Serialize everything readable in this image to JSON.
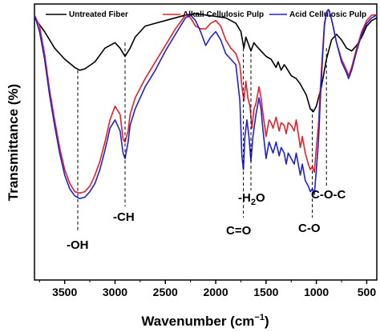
{
  "chart_data": {
    "type": "line",
    "xlabel": "Wavenumber (cm",
    "xlabel_sup": "−1",
    "xlabel_end": ")",
    "ylabel": "Transmittance (%)",
    "xlim": [
      3800,
      400
    ],
    "xticks": [
      3500,
      3000,
      2500,
      2000,
      1500,
      1000,
      500
    ],
    "ylim": [
      0,
      100
    ],
    "legend_position": "top",
    "series": [
      {
        "name": "Untreated Fiber",
        "color": "#000000",
        "points": [
          [
            3800,
            95
          ],
          [
            3700,
            90
          ],
          [
            3600,
            84
          ],
          [
            3500,
            80
          ],
          [
            3400,
            77
          ],
          [
            3350,
            76
          ],
          [
            3300,
            76.5
          ],
          [
            3200,
            79
          ],
          [
            3100,
            84
          ],
          [
            3000,
            86
          ],
          [
            2950,
            84
          ],
          [
            2900,
            81
          ],
          [
            2850,
            84
          ],
          [
            2800,
            88
          ],
          [
            2700,
            92
          ],
          [
            2600,
            93
          ],
          [
            2500,
            94
          ],
          [
            2400,
            95
          ],
          [
            2300,
            96
          ],
          [
            2200,
            96.5
          ],
          [
            2100,
            96
          ],
          [
            2000,
            95.5
          ],
          [
            1900,
            95
          ],
          [
            1800,
            93
          ],
          [
            1750,
            90
          ],
          [
            1720,
            84
          ],
          [
            1700,
            88
          ],
          [
            1680,
            86
          ],
          [
            1650,
            83
          ],
          [
            1620,
            86
          ],
          [
            1600,
            85
          ],
          [
            1550,
            83
          ],
          [
            1500,
            81
          ],
          [
            1450,
            80
          ],
          [
            1400,
            77
          ],
          [
            1380,
            79
          ],
          [
            1350,
            76
          ],
          [
            1320,
            78
          ],
          [
            1300,
            77
          ],
          [
            1250,
            74
          ],
          [
            1200,
            73
          ],
          [
            1160,
            71
          ],
          [
            1100,
            67
          ],
          [
            1060,
            62
          ],
          [
            1030,
            61
          ],
          [
            1000,
            63
          ],
          [
            950,
            70
          ],
          [
            900,
            80
          ],
          [
            850,
            87
          ],
          [
            800,
            89
          ],
          [
            750,
            87
          ],
          [
            700,
            84
          ],
          [
            650,
            83
          ],
          [
            600,
            85
          ],
          [
            550,
            88
          ],
          [
            500,
            92
          ],
          [
            450,
            94
          ],
          [
            400,
            95
          ]
        ]
      },
      {
        "name": "Alkali Cellulosic Pulp",
        "color": "#e8202a",
        "points": [
          [
            3800,
            96
          ],
          [
            3750,
            92
          ],
          [
            3700,
            82
          ],
          [
            3650,
            69
          ],
          [
            3600,
            58
          ],
          [
            3550,
            48
          ],
          [
            3500,
            40
          ],
          [
            3450,
            35
          ],
          [
            3400,
            32
          ],
          [
            3350,
            31.5
          ],
          [
            3300,
            32
          ],
          [
            3250,
            34
          ],
          [
            3200,
            38
          ],
          [
            3150,
            43
          ],
          [
            3100,
            50
          ],
          [
            3050,
            58
          ],
          [
            3000,
            63
          ],
          [
            2950,
            60
          ],
          [
            2920,
            51
          ],
          [
            2900,
            50
          ],
          [
            2870,
            54
          ],
          [
            2850,
            60
          ],
          [
            2800,
            66
          ],
          [
            2700,
            73
          ],
          [
            2600,
            79
          ],
          [
            2500,
            85
          ],
          [
            2400,
            91
          ],
          [
            2300,
            96
          ],
          [
            2250,
            95
          ],
          [
            2200,
            92
          ],
          [
            2150,
            91
          ],
          [
            2100,
            91
          ],
          [
            2050,
            93
          ],
          [
            2000,
            94
          ],
          [
            1950,
            92
          ],
          [
            1900,
            87
          ],
          [
            1850,
            84
          ],
          [
            1800,
            82
          ],
          [
            1760,
            78
          ],
          [
            1740,
            70
          ],
          [
            1720,
            65
          ],
          [
            1700,
            72
          ],
          [
            1680,
            66
          ],
          [
            1660,
            63
          ],
          [
            1640,
            55
          ],
          [
            1620,
            62
          ],
          [
            1600,
            64
          ],
          [
            1570,
            70
          ],
          [
            1550,
            66
          ],
          [
            1530,
            60
          ],
          [
            1500,
            52
          ],
          [
            1470,
            58
          ],
          [
            1450,
            57
          ],
          [
            1430,
            55
          ],
          [
            1400,
            59
          ],
          [
            1370,
            54
          ],
          [
            1350,
            57
          ],
          [
            1320,
            56
          ],
          [
            1300,
            53
          ],
          [
            1280,
            57
          ],
          [
            1250,
            56
          ],
          [
            1220,
            54
          ],
          [
            1200,
            58
          ],
          [
            1160,
            48
          ],
          [
            1140,
            52
          ],
          [
            1110,
            46
          ],
          [
            1080,
            42
          ],
          [
            1060,
            40
          ],
          [
            1040,
            41
          ],
          [
            1020,
            39
          ],
          [
            1000,
            48
          ],
          [
            980,
            56
          ],
          [
            960,
            70
          ],
          [
            940,
            82
          ],
          [
            920,
            93
          ],
          [
            900,
            97
          ],
          [
            880,
            98
          ],
          [
            860,
            96
          ],
          [
            840,
            93
          ],
          [
            800,
            86
          ],
          [
            750,
            80
          ],
          [
            700,
            76
          ],
          [
            680,
            74
          ],
          [
            650,
            77
          ],
          [
            600,
            84
          ],
          [
            550,
            90
          ],
          [
            500,
            94
          ],
          [
            450,
            96
          ],
          [
            400,
            96
          ]
        ]
      },
      {
        "name": "Acid Cellulosic Pulp",
        "color": "#2222cc",
        "points": [
          [
            3800,
            96
          ],
          [
            3750,
            90
          ],
          [
            3700,
            80
          ],
          [
            3650,
            67
          ],
          [
            3600,
            56
          ],
          [
            3550,
            46
          ],
          [
            3500,
            38
          ],
          [
            3450,
            33
          ],
          [
            3400,
            30.5
          ],
          [
            3350,
            29.5
          ],
          [
            3300,
            30
          ],
          [
            3250,
            32
          ],
          [
            3200,
            35
          ],
          [
            3150,
            40
          ],
          [
            3100,
            47
          ],
          [
            3050,
            55
          ],
          [
            3000,
            58
          ],
          [
            2950,
            54
          ],
          [
            2920,
            46
          ],
          [
            2900,
            44
          ],
          [
            2870,
            50
          ],
          [
            2850,
            56
          ],
          [
            2800,
            62
          ],
          [
            2700,
            70
          ],
          [
            2600,
            76
          ],
          [
            2500,
            83
          ],
          [
            2400,
            89
          ],
          [
            2300,
            95
          ],
          [
            2250,
            96
          ],
          [
            2200,
            94
          ],
          [
            2150,
            90
          ],
          [
            2100,
            85
          ],
          [
            2050,
            88
          ],
          [
            2000,
            90
          ],
          [
            1950,
            87
          ],
          [
            1900,
            82
          ],
          [
            1850,
            80
          ],
          [
            1800,
            78
          ],
          [
            1760,
            65
          ],
          [
            1740,
            45
          ],
          [
            1725,
            40
          ],
          [
            1710,
            52
          ],
          [
            1690,
            58
          ],
          [
            1670,
            52
          ],
          [
            1650,
            43
          ],
          [
            1630,
            52
          ],
          [
            1600,
            60
          ],
          [
            1570,
            66
          ],
          [
            1550,
            62
          ],
          [
            1530,
            54
          ],
          [
            1500,
            44
          ],
          [
            1470,
            50
          ],
          [
            1450,
            48
          ],
          [
            1430,
            46
          ],
          [
            1400,
            50
          ],
          [
            1370,
            45
          ],
          [
            1350,
            48
          ],
          [
            1320,
            46
          ],
          [
            1300,
            42
          ],
          [
            1280,
            46
          ],
          [
            1250,
            44
          ],
          [
            1220,
            42
          ],
          [
            1200,
            46
          ],
          [
            1160,
            38
          ],
          [
            1140,
            42
          ],
          [
            1110,
            36
          ],
          [
            1080,
            34
          ],
          [
            1060,
            32
          ],
          [
            1040,
            33
          ],
          [
            1020,
            31
          ],
          [
            1000,
            40
          ],
          [
            980,
            50
          ],
          [
            960,
            66
          ],
          [
            940,
            80
          ],
          [
            920,
            92
          ],
          [
            900,
            97
          ],
          [
            880,
            98
          ],
          [
            860,
            96
          ],
          [
            840,
            93
          ],
          [
            800,
            86
          ],
          [
            750,
            79
          ],
          [
            700,
            75
          ],
          [
            680,
            73
          ],
          [
            650,
            76
          ],
          [
            600,
            83
          ],
          [
            550,
            89
          ],
          [
            500,
            93
          ],
          [
            450,
            95
          ],
          [
            400,
            96
          ]
        ]
      }
    ],
    "annotations": [
      {
        "text": "-OH",
        "x": 3370,
        "line_to_y": 76
      },
      {
        "text": "-CH",
        "x": 2900,
        "line_to_y": 86
      },
      {
        "text": "-H",
        "sub": "2",
        "text_end": "O",
        "x": 1650,
        "line_to_y": 82
      },
      {
        "text": "C=O",
        "x": 1725,
        "line_to_y": 84
      },
      {
        "text": "C-O",
        "x": 1040,
        "line_to_y": 62
      },
      {
        "text": "C-O-C",
        "x": 900,
        "line_to_y": 84
      }
    ]
  }
}
